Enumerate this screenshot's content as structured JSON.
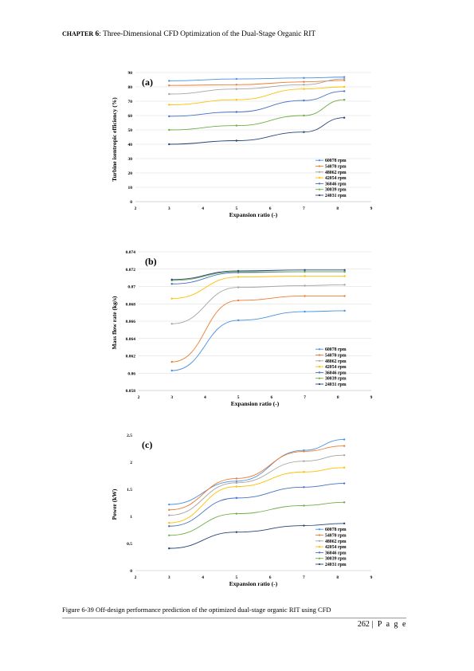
{
  "header": {
    "chapter_small": "CHAPTER",
    "chapter_num": "6",
    "title": ": Three-Dimensional CFD Optimization of the Dual-Stage Organic RIT"
  },
  "caption": "Figure 6-39 Off-design performance prediction of the optimized dual-stage organic RIT using CFD",
  "footer": {
    "page_number": "262",
    "page_word": "| P a g e"
  },
  "colors": [
    "#4A90E2",
    "#ED7D31",
    "#A5A5A5",
    "#FFC000",
    "#4472C4",
    "#70AD47",
    "#264478"
  ],
  "chart_data": [
    {
      "type": "line",
      "panel_label": "(a)",
      "xlabel": "Expansion ratio (-)",
      "ylabel": "Turbine isentropic efficiency (%)",
      "xlim": [
        2,
        9
      ],
      "ylim": [
        0,
        90
      ],
      "xticks": [
        "2",
        "3",
        "4",
        "5",
        "6",
        "7",
        "8",
        "9"
      ],
      "yticks": [
        "0",
        "10",
        "20",
        "30",
        "40",
        "50",
        "60",
        "70",
        "80",
        "90"
      ],
      "grid": true,
      "legend_position": "bottom-right",
      "series": [
        {
          "name": "60078 rpm",
          "x": [
            3,
            5,
            7,
            8.2
          ],
          "y": [
            84.2,
            85.5,
            86.2,
            86.8
          ]
        },
        {
          "name": "54070 rpm",
          "x": [
            3,
            5,
            7,
            8.2
          ],
          "y": [
            81,
            81.5,
            83.5,
            84.5
          ]
        },
        {
          "name": "48062 rpm",
          "x": [
            3,
            5,
            7,
            8.2
          ],
          "y": [
            75,
            78.5,
            81.5,
            85.5
          ]
        },
        {
          "name": "42054 rpm",
          "x": [
            3,
            5,
            7,
            8.2
          ],
          "y": [
            67.5,
            71,
            78.5,
            80
          ]
        },
        {
          "name": "36046 rpm",
          "x": [
            3,
            5,
            7,
            8.2
          ],
          "y": [
            59.5,
            62.5,
            70.5,
            77
          ]
        },
        {
          "name": "30039 rpm",
          "x": [
            3,
            5,
            7,
            8.2
          ],
          "y": [
            50,
            53,
            60,
            71
          ]
        },
        {
          "name": "24031 rpm",
          "x": [
            3,
            5,
            7,
            8.2
          ],
          "y": [
            40,
            42.5,
            48.5,
            58.5
          ]
        }
      ]
    },
    {
      "type": "line",
      "panel_label": "(b)",
      "xlabel": "Expansion ratio (-)",
      "ylabel": "Mass flow rate (kg/s)",
      "xlim": [
        2,
        9
      ],
      "ylim": [
        0.058,
        0.074
      ],
      "xticks": [
        "2",
        "3",
        "4",
        "5",
        "6",
        "7",
        "8",
        "9"
      ],
      "yticks": [
        "0.058",
        "0.06",
        "0.062",
        "0.064",
        "0.066",
        "0.068",
        "0.07",
        "0.072",
        "0.074"
      ],
      "grid": true,
      "legend_position": "bottom-right",
      "series": [
        {
          "name": "60078 rpm",
          "x": [
            3,
            5,
            7,
            8.2
          ],
          "y": [
            0.0603,
            0.0661,
            0.0671,
            0.0672
          ]
        },
        {
          "name": "54070 rpm",
          "x": [
            3,
            5,
            7,
            8.2
          ],
          "y": [
            0.0613,
            0.0684,
            0.0689,
            0.0689
          ]
        },
        {
          "name": "48062 rpm",
          "x": [
            3,
            5,
            7,
            8.2
          ],
          "y": [
            0.0657,
            0.0699,
            0.0701,
            0.0702
          ]
        },
        {
          "name": "42054 rpm",
          "x": [
            3,
            5,
            7,
            8.2
          ],
          "y": [
            0.0686,
            0.0711,
            0.0712,
            0.0712
          ]
        },
        {
          "name": "36046 rpm",
          "x": [
            3,
            5,
            7,
            8.2
          ],
          "y": [
            0.0703,
            0.0716,
            0.0717,
            0.0717
          ]
        },
        {
          "name": "30039 rpm",
          "x": [
            3,
            5,
            7,
            8.2
          ],
          "y": [
            0.0707,
            0.0717,
            0.0717,
            0.0717
          ]
        },
        {
          "name": "24031 rpm",
          "x": [
            3,
            5,
            7,
            8.2
          ],
          "y": [
            0.0708,
            0.0718,
            0.0719,
            0.0719
          ]
        }
      ]
    },
    {
      "type": "line",
      "panel_label": "(c)",
      "xlabel": "Expansion ratio (-)",
      "ylabel": "Power (kW)",
      "xlim": [
        2,
        9
      ],
      "ylim": [
        0,
        2.5
      ],
      "xticks": [
        "2",
        "3",
        "4",
        "5",
        "6",
        "7",
        "8",
        "9"
      ],
      "yticks": [
        "0",
        "0.5",
        "1",
        "1.5",
        "2",
        "2.5"
      ],
      "grid": false,
      "legend_position": "bottom-right",
      "series": [
        {
          "name": "60078 rpm",
          "x": [
            3,
            5,
            7,
            8.2
          ],
          "y": [
            1.22,
            1.65,
            2.22,
            2.42
          ]
        },
        {
          "name": "54070 rpm",
          "x": [
            3,
            5,
            7,
            8.2
          ],
          "y": [
            1.12,
            1.7,
            2.2,
            2.3
          ]
        },
        {
          "name": "48062 rpm",
          "x": [
            3,
            5,
            7,
            8.2
          ],
          "y": [
            1.02,
            1.62,
            2.02,
            2.13
          ]
        },
        {
          "name": "42054 rpm",
          "x": [
            3,
            5,
            7,
            8.2
          ],
          "y": [
            0.88,
            1.55,
            1.82,
            1.9
          ]
        },
        {
          "name": "36046 rpm",
          "x": [
            3,
            5,
            7,
            8.2
          ],
          "y": [
            0.82,
            1.34,
            1.54,
            1.61
          ]
        },
        {
          "name": "30039 rpm",
          "x": [
            3,
            5,
            7,
            8.2
          ],
          "y": [
            0.65,
            1.05,
            1.2,
            1.26
          ]
        },
        {
          "name": "24031 rpm",
          "x": [
            3,
            5,
            7,
            8.2
          ],
          "y": [
            0.41,
            0.71,
            0.83,
            0.87
          ]
        }
      ]
    }
  ]
}
